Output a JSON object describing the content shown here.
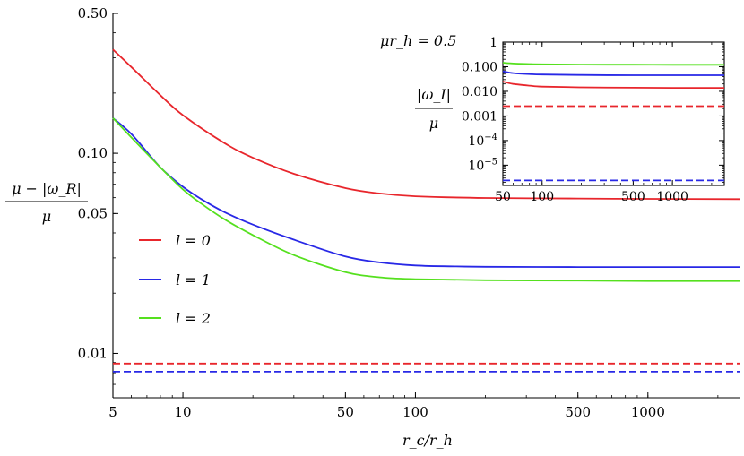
{
  "chart_data": [
    {
      "name": "main",
      "type": "line",
      "scale": "log-log",
      "xlabel": "r_c/r_h",
      "ylabel_numerator": "μ − |ω_R|",
      "ylabel_denominator": "μ",
      "xlim": [
        5,
        2500
      ],
      "ylim": [
        0.006,
        0.5
      ],
      "x_ticks": [
        5,
        10,
        50,
        100,
        500,
        1000
      ],
      "x_tick_labels": [
        "5",
        "10",
        "50",
        "100",
        "500",
        "1000"
      ],
      "y_ticks": [
        0.01,
        0.05,
        0.1,
        0.5
      ],
      "y_tick_labels": [
        "0.01",
        "0.05",
        "0.10",
        "0.50"
      ],
      "legend": [
        {
          "label": "l = 0",
          "color": "#e8262c"
        },
        {
          "label": "l = 1",
          "color": "#2828e6"
        },
        {
          "label": "l = 2",
          "color": "#55e01e"
        }
      ],
      "series": [
        {
          "name": "l = 0",
          "color": "#e8262c",
          "style": "solid",
          "x": [
            5,
            6,
            8,
            10,
            15,
            20,
            30,
            50,
            70,
            100,
            200,
            500,
            1000,
            2500
          ],
          "y": [
            0.33,
            0.27,
            0.195,
            0.155,
            0.113,
            0.095,
            0.079,
            0.067,
            0.063,
            0.061,
            0.0598,
            0.0594,
            0.0592,
            0.059
          ]
        },
        {
          "name": "l = 1",
          "color": "#2828e6",
          "style": "solid",
          "x": [
            5,
            6,
            8,
            10,
            12,
            15,
            20,
            30,
            50,
            70,
            100,
            150,
            200,
            500,
            1000,
            2500
          ],
          "y": [
            0.15,
            0.125,
            0.085,
            0.068,
            0.059,
            0.051,
            0.044,
            0.037,
            0.0305,
            0.0285,
            0.0275,
            0.0272,
            0.0271,
            0.027,
            0.027,
            0.027
          ]
        },
        {
          "name": "l = 2",
          "color": "#55e01e",
          "style": "solid",
          "x": [
            5,
            6,
            8,
            10,
            12,
            15,
            20,
            30,
            50,
            70,
            100,
            200,
            500,
            1000,
            2500
          ],
          "y": [
            0.15,
            0.12,
            0.085,
            0.066,
            0.056,
            0.047,
            0.039,
            0.031,
            0.0255,
            0.024,
            0.0235,
            0.0232,
            0.0231,
            0.023,
            0.023
          ]
        },
        {
          "name": "l = 0 (dashed)",
          "color": "#e8262c",
          "style": "dashed",
          "x": [
            5,
            2500
          ],
          "y": [
            0.0089,
            0.0089
          ]
        },
        {
          "name": "l = 1 (dashed)",
          "color": "#2828e6",
          "style": "dashed",
          "x": [
            5,
            2500
          ],
          "y": [
            0.0081,
            0.0081
          ]
        }
      ]
    },
    {
      "name": "inset",
      "type": "line",
      "scale": "log-log",
      "annotation": "μr_h = 0.5",
      "ylabel_numerator": "|ω_I|",
      "ylabel_denominator": "μ",
      "xlim": [
        50,
        2500
      ],
      "ylim": [
        1.5e-06,
        1
      ],
      "x_ticks": [
        50,
        100,
        500,
        1000
      ],
      "x_tick_labels": [
        "50",
        "100",
        "500",
        "1000"
      ],
      "y_ticks": [
        1,
        0.1,
        0.01,
        0.001,
        0.0001,
        1e-05
      ],
      "y_tick_labels": [
        "1",
        "0.100",
        "0.010",
        "0.001",
        "10−4",
        "10−5"
      ],
      "series": [
        {
          "name": "l = 2",
          "color": "#55e01e",
          "style": "solid",
          "x": [
            50,
            60,
            80,
            100,
            200,
            500,
            1000,
            2500
          ],
          "y": [
            0.145,
            0.135,
            0.128,
            0.125,
            0.122,
            0.121,
            0.12,
            0.12
          ]
        },
        {
          "name": "l = 1",
          "color": "#2828e6",
          "style": "solid",
          "x": [
            50,
            60,
            80,
            100,
            200,
            500,
            1000,
            2500
          ],
          "y": [
            0.065,
            0.055,
            0.05,
            0.048,
            0.046,
            0.045,
            0.045,
            0.045
          ]
        },
        {
          "name": "l = 0",
          "color": "#e8262c",
          "style": "solid",
          "x": [
            50,
            60,
            80,
            100,
            200,
            500,
            1000,
            2500
          ],
          "y": [
            0.025,
            0.02,
            0.017,
            0.0155,
            0.0145,
            0.014,
            0.0138,
            0.0138
          ]
        },
        {
          "name": "l = 0 (dashed)",
          "color": "#e8262c",
          "style": "dashed",
          "x": [
            50,
            2500
          ],
          "y": [
            0.0025,
            0.0025
          ]
        },
        {
          "name": "l = 1 (dashed)",
          "color": "#2828e6",
          "style": "dashed",
          "x": [
            50,
            2500
          ],
          "y": [
            2.4e-06,
            2.4e-06
          ]
        }
      ]
    }
  ]
}
